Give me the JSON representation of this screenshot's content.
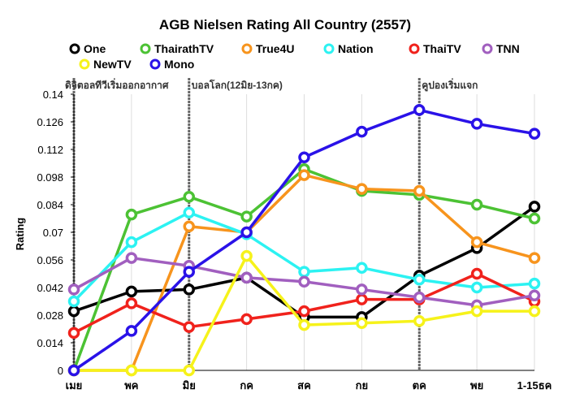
{
  "chart_data": {
    "type": "line",
    "title": "AGB Nielsen Rating All Country (2557)",
    "xlabel": "",
    "ylabel": "Rating",
    "ylim": [
      0,
      0.14
    ],
    "yticks": [
      "0",
      "0.014",
      "0.028",
      "0.042",
      "0.056",
      "0.07",
      "0.084",
      "0.098",
      "0.112",
      "0.126",
      "0.14"
    ],
    "categories": [
      "เมย",
      "พค",
      "มิย",
      "กค",
      "สค",
      "กย",
      "ตค",
      "พย",
      "1-15ธค"
    ],
    "grid": "vertical",
    "legend_position": "top",
    "series": [
      {
        "name": "One",
        "color": "#000000",
        "values": [
          0.03,
          0.04,
          0.041,
          0.047,
          0.027,
          0.027,
          0.048,
          0.062,
          0.083
        ]
      },
      {
        "name": "ThairathTV",
        "color": "#4cc234",
        "values": [
          0.0,
          0.079,
          0.088,
          0.078,
          0.102,
          0.091,
          0.089,
          0.084,
          0.077
        ]
      },
      {
        "name": "True4U",
        "color": "#f7941d",
        "values": [
          0.0,
          0.0,
          0.073,
          0.07,
          0.099,
          0.092,
          0.091,
          0.065,
          0.057
        ]
      },
      {
        "name": "Nation",
        "color": "#2cf2f2",
        "values": [
          0.035,
          0.065,
          0.08,
          0.069,
          0.05,
          0.052,
          0.046,
          0.042,
          0.044
        ]
      },
      {
        "name": "ThaiTV",
        "color": "#f0221c",
        "values": [
          0.019,
          0.034,
          0.022,
          0.026,
          0.03,
          0.036,
          0.036,
          0.049,
          0.035
        ]
      },
      {
        "name": "TNN",
        "color": "#a15fbf",
        "values": [
          0.041,
          0.057,
          0.053,
          0.047,
          0.045,
          0.041,
          0.037,
          0.033,
          0.038
        ]
      },
      {
        "name": "NewTV",
        "color": "#f6f21a",
        "values": [
          0.0,
          0.0,
          0.0,
          0.058,
          0.023,
          0.024,
          0.025,
          0.03,
          0.03
        ]
      },
      {
        "name": "Mono",
        "color": "#2a12e8",
        "values": [
          0.0,
          0.02,
          0.05,
          0.07,
          0.108,
          0.121,
          0.132,
          0.125,
          0.12
        ]
      }
    ],
    "annotations": [
      {
        "text": "ดิจิตอลทีวีเริ่มออกอากาศ",
        "category_index": 0
      },
      {
        "text": "บอลโลก(12มิย-13กค)",
        "category_index": 2
      },
      {
        "text": "คูปองเริ่มแจก",
        "category_index": 6
      }
    ]
  }
}
